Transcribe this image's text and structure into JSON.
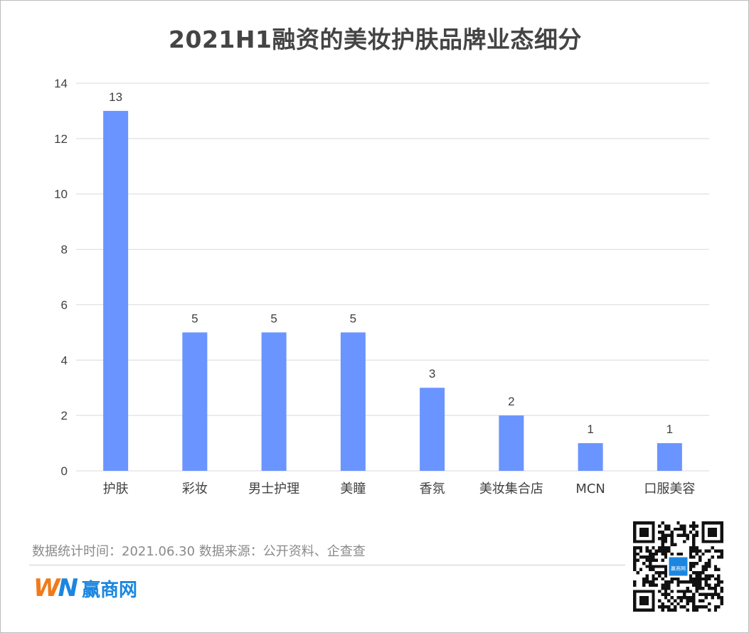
{
  "title": "2021H1融资的美妆护肤品牌业态细分",
  "footer": {
    "source_text": "数据统计时间：2021.06.30  数据来源：公开资料、企查查"
  },
  "brand": {
    "mark_w": "W",
    "mark_n": "N",
    "name": "赢商网",
    "qr_badge": "赢商网"
  },
  "colors": {
    "bar": "#6a94ff",
    "grid": "#d9d9d9",
    "axis_text": "#404040",
    "brand_orange": "#f07a1a",
    "brand_blue": "#1b86e0"
  },
  "chart_data": {
    "type": "bar",
    "title": "2021H1融资的美妆护肤品牌业态细分",
    "categories": [
      "护肤",
      "彩妆",
      "男士护理",
      "美瞳",
      "香氛",
      "美妆集合店",
      "MCN",
      "口服美容"
    ],
    "values": [
      13,
      5,
      5,
      5,
      3,
      2,
      1,
      1
    ],
    "yticks": [
      0,
      2,
      4,
      6,
      8,
      10,
      12,
      14
    ],
    "ylim": [
      0,
      14
    ],
    "xlabel": "",
    "ylabel": "",
    "grid": true,
    "legend": "none",
    "data_labels": true
  }
}
